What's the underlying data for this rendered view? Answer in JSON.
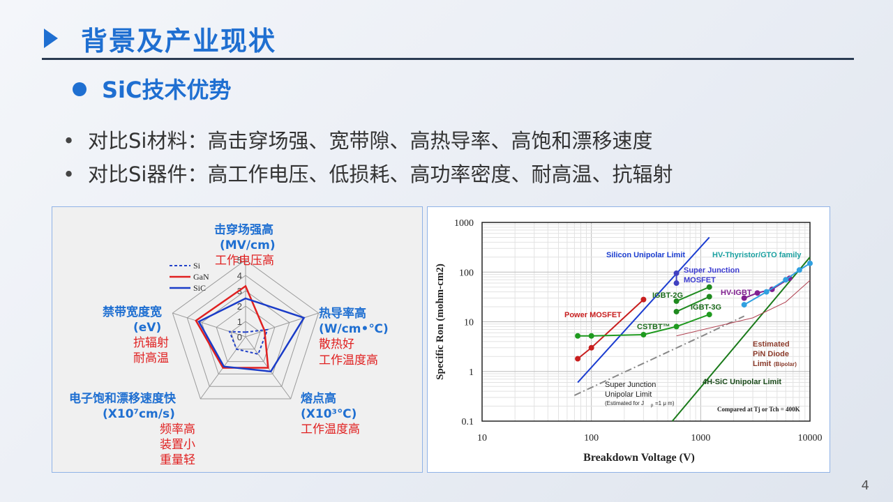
{
  "header": {
    "title": "背景及产业现状"
  },
  "subheader": {
    "title": "SiC技术优势"
  },
  "bullets": [
    "对比Si材料：高击穿场强、宽带隙、高热导率、高饱和漂移速度",
    "对比Si器件：高工作电压、低损耗、高功率密度、耐高温、抗辐射"
  ],
  "radar": {
    "legend": [
      "Si",
      "GaN",
      "SiC"
    ],
    "colors": {
      "Si": "#2040c8",
      "GaN": "#e02020",
      "SiC": "#1a3cc8"
    },
    "scale_labels": [
      "0",
      "1",
      "2",
      "3",
      "4",
      "5"
    ],
    "axes": [
      {
        "title": "击穿场强高",
        "unit": "(MV/cm)",
        "notes": [
          "工作电压高"
        ]
      },
      {
        "title": "热导率高",
        "unit": "(W/cm•℃)",
        "notes": [
          "散热好",
          "工作温度高"
        ]
      },
      {
        "title": "熔点高",
        "unit": "(X10³℃)",
        "notes": [
          "工作温度高"
        ]
      },
      {
        "title": "电子饱和漂移速度快",
        "unit": "(X10⁷cm/s)",
        "notes": [
          "频率高",
          "装置小",
          "重量轻"
        ]
      },
      {
        "title": "禁带宽度宽",
        "unit": "(eV)",
        "notes": [
          "抗辐射",
          "耐高温"
        ]
      }
    ],
    "chart_data": {
      "type": "radar",
      "categories": [
        "击穿场强高",
        "热导率高",
        "熔点高",
        "电子饱和漂移速度快",
        "禁带宽度宽"
      ],
      "range": [
        0,
        5
      ],
      "series": [
        {
          "name": "Si",
          "values": [
            0.3,
            1.5,
            1.4,
            1.0,
            1.1
          ]
        },
        {
          "name": "GaN",
          "values": [
            3.3,
            1.3,
            2.5,
            2.5,
            3.4
          ]
        },
        {
          "name": "SiC",
          "values": [
            2.5,
            4.0,
            2.8,
            2.4,
            3.2
          ]
        }
      ]
    }
  },
  "ron_chart": {
    "ylabel": "Specific Ron (mohm-cm2)",
    "xlabel": "Breakdown Voltage (V)",
    "x_ticks": [
      "10",
      "100",
      "1000",
      "10000"
    ],
    "y_ticks": [
      "0.1",
      "1",
      "10",
      "100",
      "1000"
    ],
    "note": "Compared at Tj or Tch = 400K",
    "labels": {
      "si_limit": "Silicon Unipolar Limit",
      "sj_mosfet_1": "Super Junction",
      "sj_mosfet_2": "MOSFET",
      "hv_thyristor": "HV-Thyristor/GTO family",
      "igbt2g": "IGBT-2G",
      "hv_igbt": "HV-IGBT",
      "igbt3g": "IGBT-3G",
      "power_mosfet": "Power MOSFET",
      "cstbt": "CSTBT™",
      "est_1": "Estimated",
      "est_2": "PiN Diode",
      "est_3": "Limit",
      "est_bipolar": "(Bipolar)",
      "sj_limit_1": "Super Junction",
      "sj_limit_2": "Unipolar Limit",
      "sj_limit_3": "(Estimated for J",
      "sj_limit_sub": "p",
      "sj_limit_4": "=1 μ m)",
      "sic_limit": "4H-SiC Unipolar Limit"
    },
    "chart_data": {
      "type": "line",
      "x_scale": "log",
      "y_scale": "log",
      "xlim": [
        10,
        10000
      ],
      "ylim": [
        0.1,
        1000
      ],
      "xlabel": "Breakdown Voltage (V)",
      "ylabel": "Specific Ron (mohm-cm2)",
      "grid": true,
      "series": [
        {
          "name": "Silicon Unipolar Limit",
          "color": "#1a3cd0",
          "style": "solid",
          "points": [
            [
              75,
              0.6
            ],
            [
              1200,
              500
            ]
          ]
        },
        {
          "name": "Super Junction Unipolar Limit (Estimated for Jp=1 μ m)",
          "color": "#888888",
          "style": "dashdot",
          "points": [
            [
              70,
              0.33
            ],
            [
              1000,
              5
            ],
            [
              2500,
              13
            ]
          ]
        },
        {
          "name": "4H-SiC Unipolar Limit",
          "color": "#1a7a1a",
          "style": "solid",
          "points": [
            [
              550,
              0.1
            ],
            [
              10000,
              200
            ]
          ]
        },
        {
          "name": "Estimated PiN Diode Limit (Bipolar)",
          "color": "#b04050",
          "style": "thin",
          "points": [
            [
              600,
              5.2
            ],
            [
              3000,
              12
            ],
            [
              6000,
              25
            ],
            [
              10000,
              68
            ]
          ]
        },
        {
          "name": "Power MOSFET",
          "color": "#c81e1e",
          "style": "marker",
          "points": [
            [
              75,
              1.8
            ],
            [
              100,
              3
            ],
            [
              300,
              28
            ]
          ]
        },
        {
          "name": "CSTBT™",
          "color": "#1f9a1f",
          "style": "marker",
          "points": [
            [
              75,
              5.2
            ],
            [
              100,
              5.2
            ],
            [
              300,
              5.5
            ],
            [
              600,
              8
            ],
            [
              1200,
              14
            ]
          ]
        },
        {
          "name": "IGBT-2G",
          "color": "#1f8a1f",
          "style": "marker",
          "points": [
            [
              600,
              26
            ],
            [
              1200,
              50
            ]
          ]
        },
        {
          "name": "IGBT-3G",
          "color": "#1f8a1f",
          "style": "marker",
          "points": [
            [
              600,
              16
            ],
            [
              1200,
              32
            ]
          ]
        },
        {
          "name": "Super Junction MOSFET",
          "color": "#4040c0",
          "style": "marker",
          "points": [
            [
              600,
              60
            ],
            [
              600,
              95
            ]
          ]
        },
        {
          "name": "HV-IGBT",
          "color": "#802090",
          "style": "marker",
          "points": [
            [
              2500,
              30
            ],
            [
              3300,
              38
            ],
            [
              4500,
              45
            ],
            [
              6500,
              75
            ]
          ]
        },
        {
          "name": "HV-Thyristor/GTO family",
          "color": "#30a0e0",
          "style": "marker",
          "points": [
            [
              2500,
              22
            ],
            [
              4000,
              40
            ],
            [
              6000,
              70
            ],
            [
              8000,
              110
            ],
            [
              10000,
              150
            ]
          ]
        }
      ]
    }
  },
  "page_number": "4"
}
